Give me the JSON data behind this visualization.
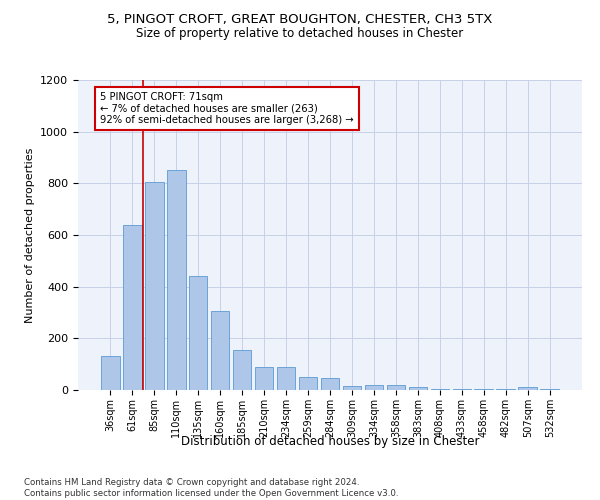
{
  "title_line1": "5, PINGOT CROFT, GREAT BOUGHTON, CHESTER, CH3 5TX",
  "title_line2": "Size of property relative to detached houses in Chester",
  "xlabel": "Distribution of detached houses by size in Chester",
  "ylabel": "Number of detached properties",
  "footnote": "Contains HM Land Registry data © Crown copyright and database right 2024.\nContains public sector information licensed under the Open Government Licence v3.0.",
  "categories": [
    "36sqm",
    "61sqm",
    "85sqm",
    "110sqm",
    "135sqm",
    "160sqm",
    "185sqm",
    "210sqm",
    "234sqm",
    "259sqm",
    "284sqm",
    "309sqm",
    "334sqm",
    "358sqm",
    "383sqm",
    "408sqm",
    "433sqm",
    "458sqm",
    "482sqm",
    "507sqm",
    "532sqm"
  ],
  "values": [
    130,
    640,
    805,
    850,
    440,
    305,
    155,
    90,
    90,
    50,
    45,
    15,
    20,
    18,
    10,
    2,
    2,
    2,
    2,
    10,
    2
  ],
  "bar_color": "#aec6e8",
  "bar_edge_color": "#5b9bd5",
  "annotation_text_line1": "5 PINGOT CROFT: 71sqm",
  "annotation_text_line2": "← 7% of detached houses are smaller (263)",
  "annotation_text_line3": "92% of semi-detached houses are larger (3,268) →",
  "red_line_x": 1.5,
  "ylim": [
    0,
    1200
  ],
  "yticks": [
    0,
    200,
    400,
    600,
    800,
    1000,
    1200
  ],
  "annotation_box_color": "#ffffff",
  "annotation_box_edge": "#cc0000",
  "vline_color": "#cc0000",
  "plot_bg_color": "#eef2fb",
  "grid_color": "#c8d0e8"
}
